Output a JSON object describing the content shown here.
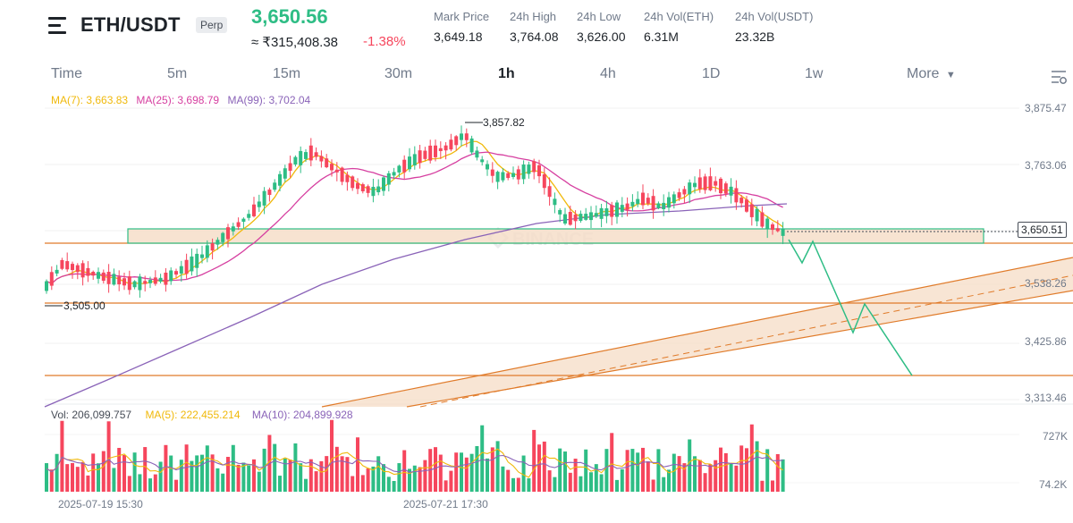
{
  "header": {
    "pair": "ETH/USDT",
    "badge": "Perp",
    "last_price": "3,650.56",
    "fiat_price": "≈ ₹315,408.38",
    "change": "-1.38%",
    "stats": [
      {
        "label": "Mark Price",
        "value": "3,649.18"
      },
      {
        "label": "24h High",
        "value": "3,764.08"
      },
      {
        "label": "24h Low",
        "value": "3,626.00"
      },
      {
        "label": "24h Vol(ETH)",
        "value": "6.31M"
      },
      {
        "label": "24h Vol(USDT)",
        "value": "23.32B"
      }
    ]
  },
  "tabs": [
    {
      "label": "Time"
    },
    {
      "label": "5m"
    },
    {
      "label": "15m"
    },
    {
      "label": "30m"
    },
    {
      "label": "1h"
    },
    {
      "label": "4h"
    },
    {
      "label": "1D"
    },
    {
      "label": "1w"
    },
    {
      "label": "More"
    }
  ],
  "active_tab": "1h",
  "ma_legend": {
    "ma7": "MA(7): 3,663.83",
    "ma25": "MA(25): 3,698.79",
    "ma99": "MA(99): 3,702.04"
  },
  "vol_legend": {
    "vol": "Vol: 206,099.757",
    "ma5": "MA(5): 222,455.214",
    "ma10": "MA(10): 204,899.928"
  },
  "price_axis": [
    "3,875.47",
    "3,763.06",
    "3,538.26",
    "3,425.86",
    "3,313.46"
  ],
  "current_price_tag": "3,650.51",
  "annotations": {
    "high": "3,857.82",
    "low": "3,505.00"
  },
  "volume_axis": [
    "727K",
    "74.2K"
  ],
  "date_axis": [
    "2025-07-19 15:30",
    "2025-07-21 17:30"
  ],
  "watermark": "BINANCE",
  "colors": {
    "up": "#2ebd85",
    "down": "#f6465d",
    "ma7": "#f0b90b",
    "ma25": "#d63fa0",
    "ma99": "#8a63b8",
    "support_zone": "#f5dcc6",
    "orange_line": "#e07b2a"
  },
  "chart_data": {
    "type": "candlestick",
    "interval": "1h",
    "ma_periods": [
      7,
      25,
      99
    ],
    "start_price": 3525,
    "end_price": 3650.56,
    "volume_range": [
      74200,
      727000
    ]
  }
}
